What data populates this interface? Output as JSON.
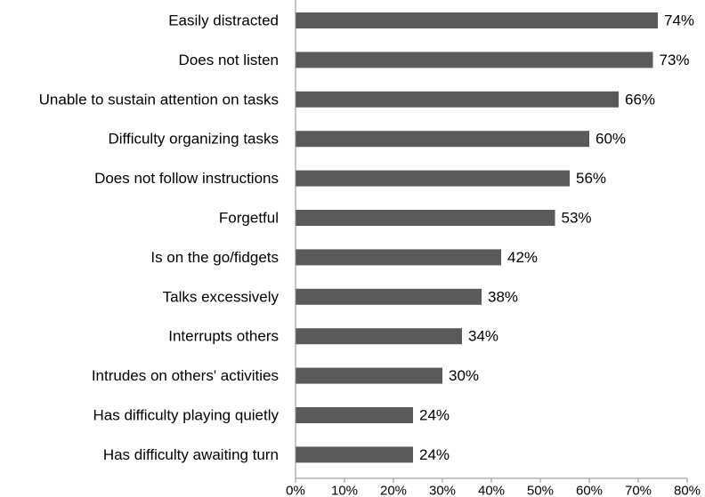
{
  "chart_data": {
    "type": "bar",
    "orientation": "horizontal",
    "title": "",
    "xlabel": "",
    "ylabel": "",
    "categories": [
      "Easily distracted",
      "Does not listen",
      "Unable to sustain attention on tasks",
      "Difficulty organizing tasks",
      "Does not follow instructions",
      "Forgetful",
      "Is on the go/fidgets",
      "Talks excessively",
      "Interrupts others",
      "Intrudes on others' activities",
      "Has difficulty playing quietly",
      "Has difficulty awaiting turn"
    ],
    "values": [
      74,
      73,
      66,
      60,
      56,
      53,
      42,
      38,
      34,
      30,
      24,
      24
    ],
    "value_labels": [
      "74%",
      "73%",
      "66%",
      "60%",
      "56%",
      "53%",
      "42%",
      "38%",
      "34%",
      "30%",
      "24%",
      "24%"
    ],
    "xlim": [
      0,
      80
    ],
    "x_ticks": [
      0,
      10,
      20,
      30,
      40,
      50,
      60,
      70,
      80
    ],
    "x_tick_labels": [
      "0%",
      "10%",
      "20%",
      "30%",
      "40%",
      "50%",
      "60%",
      "70%",
      "80%"
    ],
    "grid": false,
    "legend": "none",
    "bar_color": "#5a5a5a"
  }
}
